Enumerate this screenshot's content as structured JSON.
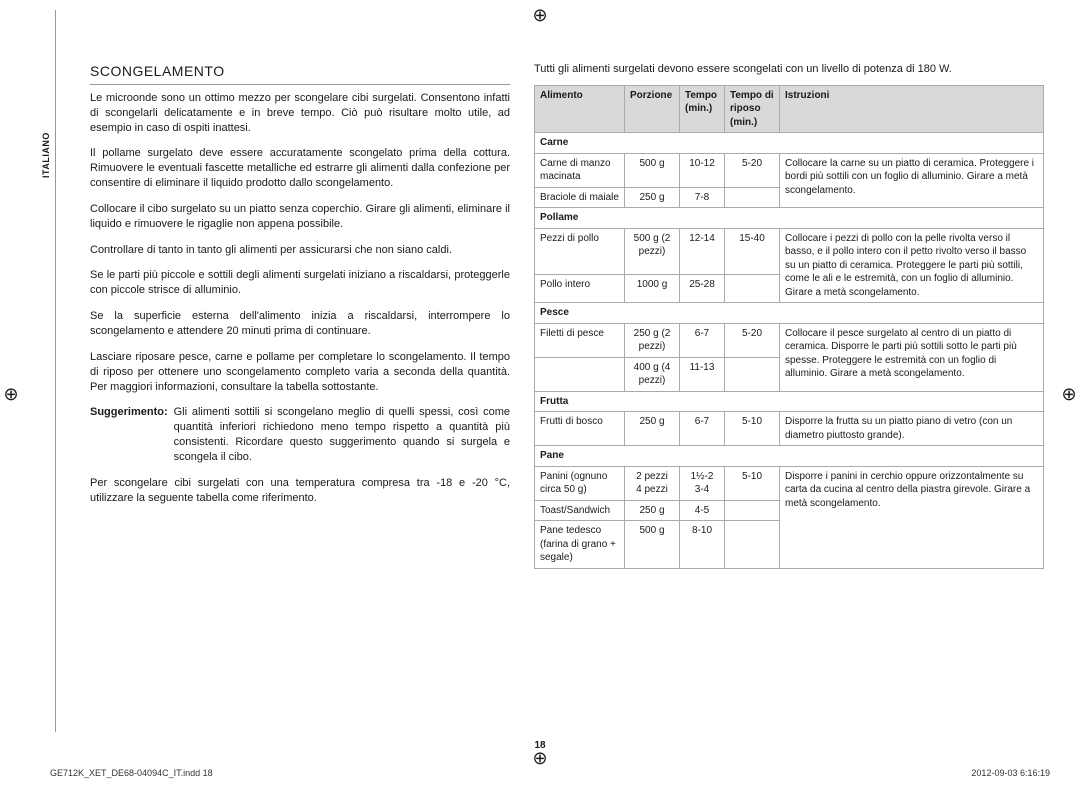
{
  "side_label": "ITALIANO",
  "heading": "SCONGELAMENTO",
  "left_paragraphs": [
    "Le microonde sono un ottimo mezzo per scongelare cibi surgelati. Consentono infatti di scongelarli delicatamente e in breve tempo. Ciò può risultare molto utile, ad esempio in caso di ospiti inattesi.",
    "Il pollame surgelato deve essere accuratamente scongelato prima della cottura. Rimuovere le eventuali fascette metalliche ed estrarre gli alimenti dalla confezione per consentire di eliminare il liquido prodotto dallo scongelamento.",
    "Collocare il cibo surgelato su un piatto senza coperchio. Girare gli alimenti, eliminare il liquido e rimuovere le rigaglie non appena possibile.",
    "Controllare di tanto in tanto gli alimenti per assicurarsi che non siano caldi.",
    "Se le parti più piccole e sottili degli alimenti surgelati iniziano a riscaldarsi, proteggerle con piccole strisce di alluminio.",
    "Se la superficie esterna dell'alimento inizia a riscaldarsi, interrompere lo scongelamento e attendere 20 minuti prima di continuare.",
    "Lasciare riposare pesce, carne e pollame per completare lo scongelamento. Il tempo di riposo per ottenere uno scongelamento completo varia a seconda della quantità. Per maggiori informazioni, consultare la tabella sottostante."
  ],
  "tip_label": "Suggerimento:",
  "tip_text": "Gli alimenti sottili si scongelano meglio di quelli spessi, così come quantità inferiori richiedono meno tempo rispetto a quantità più consistenti. Ricordare questo suggerimento quando si surgela e scongela il cibo.",
  "left_final": "Per scongelare cibi surgelati con una temperatura compresa tra -18 e -20 °C, utilizzare la seguente tabella come riferimento.",
  "right_intro": "Tutti gli alimenti surgelati devono essere scongelati con un livello di potenza di 180 W.",
  "table": {
    "headers": [
      "Alimento",
      "Porzione",
      "Tempo (min.)",
      "Tempo di riposo (min.)",
      "Istruzioni"
    ],
    "groups": [
      {
        "category": "Carne",
        "rows": [
          {
            "c1": "Carne di manzo macinata",
            "c2": "500 g",
            "c3": "10-12",
            "c4": "5-20",
            "c5": "Collocare la carne su un piatto di ceramica. Proteggere i bordi più sottili con un foglio di alluminio. Girare a metà scongelamento.",
            "span": 2
          },
          {
            "c1": "Braciole di maiale",
            "c2": "250 g",
            "c3": "7-8",
            "c4": ""
          }
        ]
      },
      {
        "category": "Pollame",
        "rows": [
          {
            "c1": "Pezzi di pollo",
            "c2": "500 g (2 pezzi)",
            "c3": "12-14",
            "c4": "15-40",
            "c5": "Collocare i pezzi di pollo con la pelle rivolta verso il basso, e il pollo intero con il petto rivolto verso il basso su un piatto di ceramica. Proteggere le parti più sottili, come le ali e le estremità, con un foglio di alluminio. Girare a metà scongelamento.",
            "span": 2
          },
          {
            "c1": "Pollo intero",
            "c2": "1000 g",
            "c3": "25-28",
            "c4": ""
          }
        ]
      },
      {
        "category": "Pesce",
        "rows": [
          {
            "c1": "Filetti di pesce",
            "c2": "250 g (2 pezzi)",
            "c3": "6-7",
            "c4": "5-20",
            "c5": "Collocare il pesce surgelato al centro di un piatto di ceramica. Disporre le parti più sottili sotto le parti più spesse. Proteggere le estremità con un foglio di alluminio. Girare a metà scongelamento.",
            "span": 2
          },
          {
            "c1": "",
            "c2": "400 g (4 pezzi)",
            "c3": "11-13",
            "c4": ""
          }
        ]
      },
      {
        "category": "Frutta",
        "rows": [
          {
            "c1": "Frutti di bosco",
            "c2": "250 g",
            "c3": "6-7",
            "c4": "5-10",
            "c5": "Disporre la frutta su un piatto piano di vetro (con un diametro piuttosto grande).",
            "span": 1
          }
        ]
      },
      {
        "category": "Pane",
        "rows": [
          {
            "c1": "Panini (ognuno circa 50 g)",
            "c2": "2 pezzi\n4 pezzi",
            "c3": "1½-2\n3-4",
            "c4": "5-10",
            "c5": "Disporre i panini in cerchio oppure orizzontalmente su carta da cucina al centro della piastra girevole. Girare a metà scongelamento.",
            "span": 3
          },
          {
            "c1": "Toast/Sandwich",
            "c2": "250 g",
            "c3": "4-5",
            "c4": ""
          },
          {
            "c1": "Pane tedesco (farina di grano + segale)",
            "c2": "500 g",
            "c3": "8-10",
            "c4": ""
          }
        ]
      }
    ]
  },
  "page_number": "18",
  "footer_left": "GE712K_XET_DE68-04094C_IT.indd   18",
  "footer_right": "2012-09-03   6:16:19"
}
